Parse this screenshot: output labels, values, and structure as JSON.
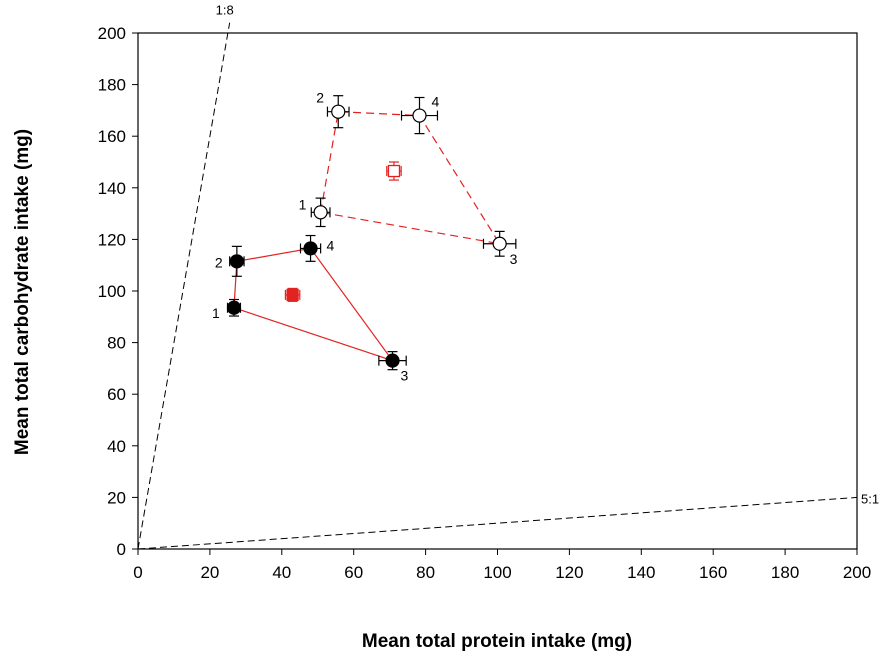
{
  "chart_data": {
    "type": "scatter",
    "xlabel": "Mean total protein intake (mg)",
    "ylabel": "Mean total carbohydrate intake (mg)",
    "xlim": [
      0,
      200
    ],
    "ylim": [
      0,
      200
    ],
    "xticks": [
      0,
      20,
      40,
      60,
      80,
      100,
      120,
      140,
      160,
      180,
      200
    ],
    "yticks": [
      0,
      20,
      40,
      60,
      80,
      100,
      120,
      140,
      160,
      180,
      200
    ],
    "grid": false,
    "legend": "none",
    "rails": [
      {
        "label": "1:8",
        "from": [
          0,
          0
        ],
        "to": [
          25.5,
          204
        ]
      },
      {
        "label": "5:1",
        "from": [
          0,
          0
        ],
        "to": [
          200,
          20
        ]
      }
    ],
    "series": [
      {
        "marker": "filled-circle",
        "line_style": "solid",
        "line_color": "#e32222",
        "points": [
          {
            "label": "1",
            "x": 26.7,
            "y": 93.5,
            "xerr": 1.8,
            "yerr": 3.2
          },
          {
            "label": "2",
            "x": 27.5,
            "y": 111.5,
            "xerr": 2.0,
            "yerr": 5.8
          },
          {
            "label": "4",
            "x": 48.0,
            "y": 116.5,
            "xerr": 2.8,
            "yerr": 5.0
          },
          {
            "label": "3",
            "x": 70.8,
            "y": 73.0,
            "xerr": 3.8,
            "yerr": 3.5
          }
        ],
        "closed": true,
        "mean": {
          "x": 43.0,
          "y": 98.5,
          "xerr": 2.0,
          "yerr": 2.5,
          "color": "#e32222",
          "marker": "filled-square"
        }
      },
      {
        "marker": "open-circle",
        "line_style": "dashed",
        "line_color": "#e32222",
        "points": [
          {
            "label": "1",
            "x": 50.8,
            "y": 130.5,
            "xerr": 2.6,
            "yerr": 5.5
          },
          {
            "label": "2",
            "x": 55.7,
            "y": 169.5,
            "xerr": 3.0,
            "yerr": 6.2
          },
          {
            "label": "4",
            "x": 78.3,
            "y": 168.0,
            "xerr": 5.0,
            "yerr": 7.0
          },
          {
            "label": "3",
            "x": 100.6,
            "y": 118.3,
            "xerr": 4.5,
            "yerr": 4.8
          }
        ],
        "closed": true,
        "mean": {
          "x": 71.2,
          "y": 146.5,
          "xerr": 2.0,
          "yerr": 3.5,
          "color": "#e32222",
          "marker": "open-square"
        }
      }
    ]
  }
}
